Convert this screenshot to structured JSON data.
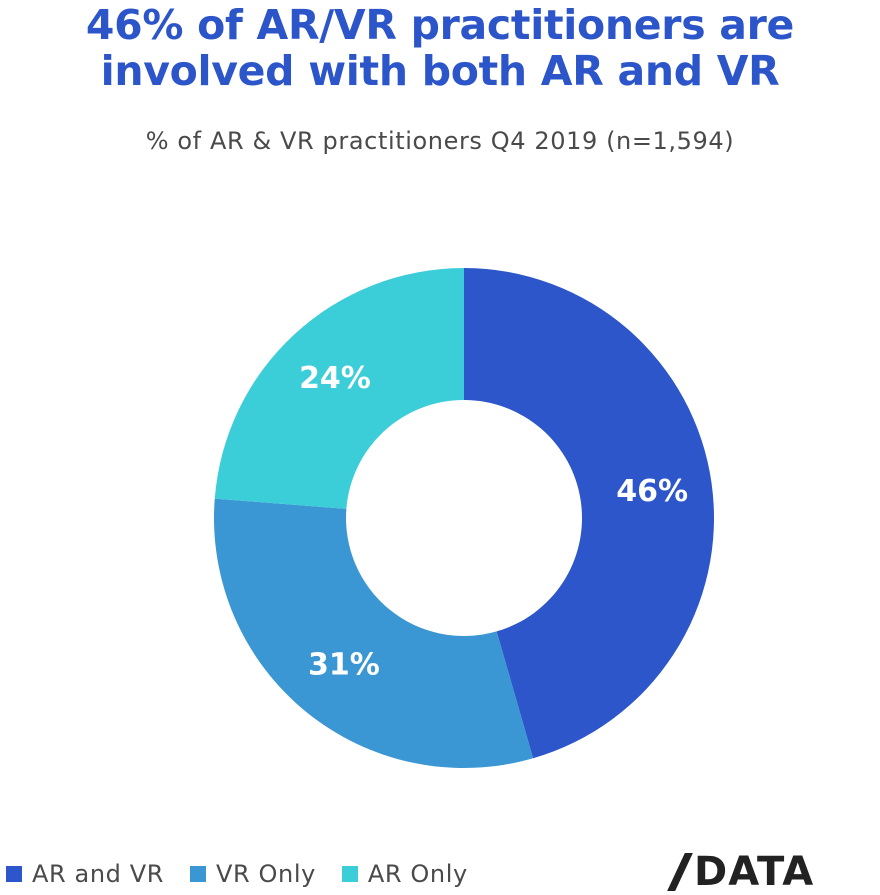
{
  "title": {
    "line1": "46% of AR/VR practitioners are",
    "line2": "involved with both AR and VR"
  },
  "subtitle": "% of AR & VR practitioners Q4 2019 (n=1,594)",
  "logo": {
    "text": "DATA"
  },
  "chart_data": {
    "type": "pie",
    "variant": "donut",
    "categories": [
      "AR and VR",
      "VR Only",
      "AR Only"
    ],
    "values": [
      46,
      31,
      24
    ],
    "data_labels": [
      "46%",
      "31%",
      "24%"
    ],
    "colors": [
      "#2c56c9",
      "#3b97d3",
      "#3bcdd8"
    ],
    "legend_position": "bottom-left"
  }
}
